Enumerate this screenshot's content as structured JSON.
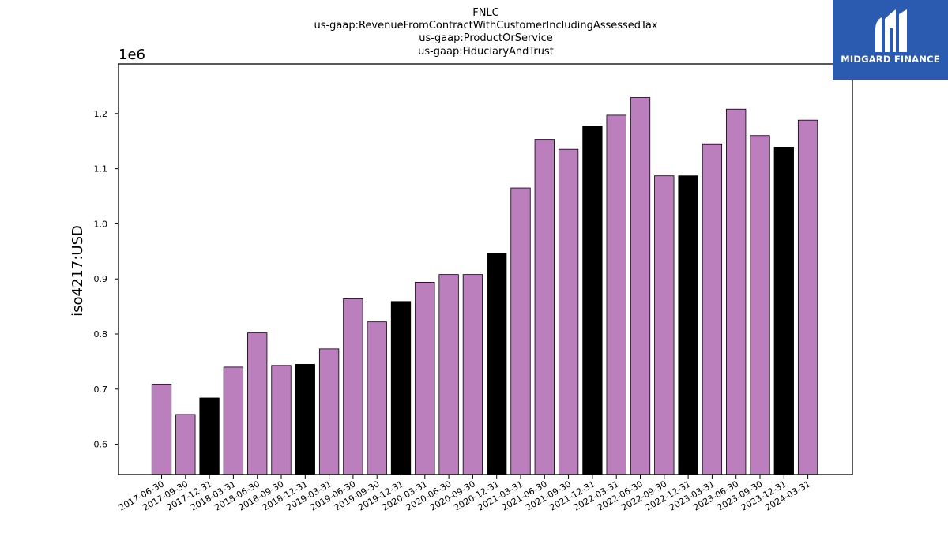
{
  "chart_data": {
    "type": "bar",
    "title_lines": [
      "FNLC",
      "us-gaap:RevenueFromContractWithCustomerIncludingAssessedTax",
      "us-gaap:ProductOrService",
      "us-gaap:FiduciaryAndTrust"
    ],
    "ylabel": "iso4217:USD",
    "y_offset_label": "1e6",
    "ylim": [
      545000,
      1290000
    ],
    "yticks": [
      600000,
      700000,
      800000,
      900000,
      1000000,
      1100000,
      1200000
    ],
    "ytick_labels": [
      "0.6",
      "0.7",
      "0.8",
      "0.9",
      "1.0",
      "1.1",
      "1.2"
    ],
    "categories": [
      "2017-06-30",
      "2017-09-30",
      "2017-12-31",
      "2018-03-31",
      "2018-06-30",
      "2018-09-30",
      "2018-12-31",
      "2019-03-31",
      "2019-06-30",
      "2019-09-30",
      "2019-12-31",
      "2020-03-31",
      "2020-06-30",
      "2020-09-30",
      "2020-12-31",
      "2021-03-31",
      "2021-06-30",
      "2021-09-30",
      "2021-12-31",
      "2022-03-31",
      "2022-06-30",
      "2022-09-30",
      "2022-12-31",
      "2023-03-31",
      "2023-06-30",
      "2023-09-30",
      "2023-12-31",
      "2024-03-31"
    ],
    "values": [
      709000,
      654000,
      684000,
      740000,
      802000,
      743000,
      745000,
      773000,
      864000,
      822000,
      859000,
      894000,
      908000,
      908000,
      947000,
      1065000,
      1153000,
      1135000,
      1177000,
      1197000,
      1229000,
      1087000,
      1087000,
      1145000,
      1208000,
      1160000,
      1139000,
      1188000
    ],
    "bar_colors": [
      "#bb7fbe",
      "#bb7fbe",
      "#000000",
      "#bb7fbe",
      "#bb7fbe",
      "#bb7fbe",
      "#000000",
      "#bb7fbe",
      "#bb7fbe",
      "#bb7fbe",
      "#000000",
      "#bb7fbe",
      "#bb7fbe",
      "#bb7fbe",
      "#000000",
      "#bb7fbe",
      "#bb7fbe",
      "#bb7fbe",
      "#000000",
      "#bb7fbe",
      "#bb7fbe",
      "#bb7fbe",
      "#000000",
      "#bb7fbe",
      "#bb7fbe",
      "#bb7fbe",
      "#000000",
      "#bb7fbe"
    ],
    "grid": false,
    "legend": "none"
  },
  "logo": {
    "text": "MIDGARD FINANCE",
    "background": "#2a5bb0"
  }
}
